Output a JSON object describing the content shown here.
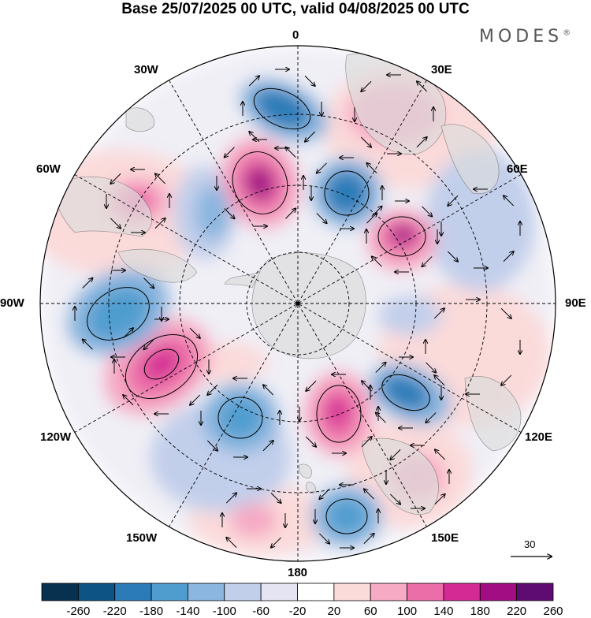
{
  "title": "Base 25/07/2025 00 UTC, valid 04/08/2025 00 UTC",
  "logo": "MODES",
  "logo_mark": "®",
  "longitude_labels": {
    "lon_0": "0",
    "lon_30e": "30E",
    "lon_60e": "60E",
    "lon_90e": "90E",
    "lon_120e": "120E",
    "lon_150e": "150E",
    "lon_180": "180",
    "lon_150w": "150W",
    "lon_120w": "120W",
    "lon_90w": "90W",
    "lon_60w": "60W",
    "lon_30w": "30W"
  },
  "reference_vector": {
    "label": "30"
  },
  "colorbar": {
    "ticks": [
      "-260",
      "-220",
      "-180",
      "-140",
      "-100",
      "-60",
      "-20",
      "20",
      "60",
      "100",
      "140",
      "180",
      "220",
      "260"
    ],
    "colors": [
      "#08304f",
      "#0d5485",
      "#2b7bb8",
      "#4f9dcf",
      "#8ab6df",
      "#c2cfeb",
      "#e4e4f2",
      "#ffffff",
      "#fbdada",
      "#f6aac4",
      "#ec6ea9",
      "#d42a93",
      "#a30d84",
      "#5e0c71"
    ]
  },
  "colors": {
    "positive": "#d42a93",
    "negative": "#2b7bb8",
    "land": "#dcdcdc",
    "grid": "#000000"
  }
}
